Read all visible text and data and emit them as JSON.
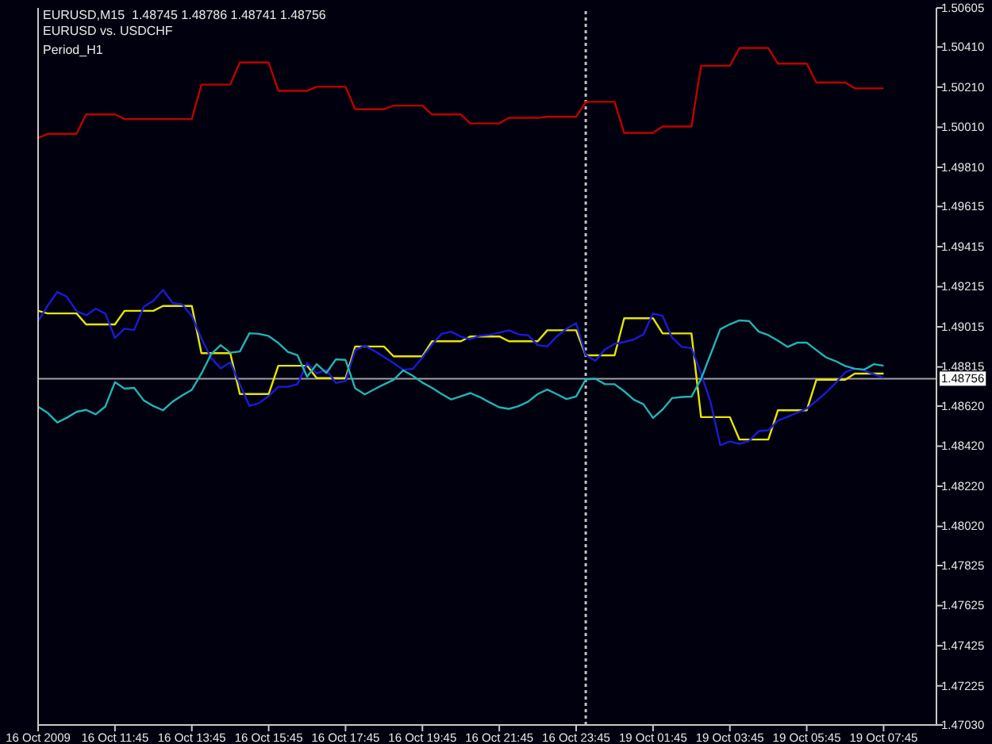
{
  "chart_data": {
    "type": "line",
    "title": "EURUSD,M15  1.48745 1.48786 1.48741 1.48756",
    "subtitle": "EURUSD vs. USDCHF",
    "annotations": [
      "Period_H1"
    ],
    "categories": [
      "16 Oct 2009",
      null,
      null,
      null,
      null,
      null,
      null,
      null,
      "16 Oct 11:45",
      null,
      null,
      null,
      null,
      null,
      null,
      null,
      "16 Oct 13:45",
      null,
      null,
      null,
      null,
      null,
      null,
      null,
      "16 Oct 15:45",
      null,
      null,
      null,
      null,
      null,
      null,
      null,
      "16 Oct 17:45",
      null,
      null,
      null,
      null,
      null,
      null,
      null,
      "16 Oct 19:45",
      null,
      null,
      null,
      null,
      null,
      null,
      null,
      "16 Oct 21:45",
      null,
      null,
      null,
      null,
      null,
      null,
      null,
      "16 Oct 23:45",
      null,
      null,
      null,
      null,
      null,
      null,
      null,
      "19 Oct 01:45",
      null,
      null,
      null,
      null,
      null,
      null,
      null,
      "19 Oct 03:45",
      null,
      null,
      null,
      null,
      null,
      null,
      null,
      "19 Oct 05:45",
      null,
      null,
      null,
      null,
      null,
      null,
      null,
      "19 Oct 07:45"
    ],
    "ylim": [
      1.4703,
      1.50605
    ],
    "yticks": [
      {
        "value": 1.50605,
        "label": "1.50605"
      },
      {
        "value": 1.5041,
        "label": "1.50410"
      },
      {
        "value": 1.5021,
        "label": "1.50210"
      },
      {
        "value": 1.5001,
        "label": "1.50010"
      },
      {
        "value": 1.4981,
        "label": "1.49810"
      },
      {
        "value": 1.49615,
        "label": "1.49615"
      },
      {
        "value": 1.49415,
        "label": "1.49415"
      },
      {
        "value": 1.49215,
        "label": "1.49215"
      },
      {
        "value": 1.49015,
        "label": "1.49015"
      },
      {
        "value": 1.48815,
        "label": "1.48815"
      },
      {
        "value": 1.4862,
        "label": "1.48620"
      },
      {
        "value": 1.4842,
        "label": "1.48420"
      },
      {
        "value": 1.4822,
        "label": "1.48220"
      },
      {
        "value": 1.4802,
        "label": "1.48020"
      },
      {
        "value": 1.47825,
        "label": "1.47825"
      },
      {
        "value": 1.47625,
        "label": "1.47625"
      },
      {
        "value": 1.47425,
        "label": "1.47425"
      },
      {
        "value": 1.47225,
        "label": "1.47225"
      },
      {
        "value": 1.4703,
        "label": "1.47030"
      }
    ],
    "ref_lines": [
      {
        "axis": "y",
        "value": 1.48756,
        "label": "1.48756",
        "color": "#a0a0a8",
        "line_style": "solid"
      }
    ],
    "series": [
      {
        "color": "#c00000",
        "values": [
          1.49957,
          1.49977,
          1.49977,
          1.49977,
          1.49977,
          1.50074,
          1.50074,
          1.50074,
          1.50074,
          1.50051,
          1.50051,
          1.50051,
          1.50051,
          1.50051,
          1.50051,
          1.50051,
          1.50051,
          1.50223,
          1.50223,
          1.50223,
          1.50223,
          1.50333,
          1.50333,
          1.50333,
          1.50333,
          1.50192,
          1.50192,
          1.50192,
          1.50192,
          1.50212,
          1.50212,
          1.50212,
          1.50212,
          1.501,
          1.501,
          1.501,
          1.501,
          1.50118,
          1.50118,
          1.50118,
          1.50118,
          1.50074,
          1.50074,
          1.50074,
          1.50074,
          1.50029,
          1.50029,
          1.50029,
          1.50029,
          1.50057,
          1.50057,
          1.50057,
          1.50057,
          1.50062,
          1.50062,
          1.50062,
          1.50062,
          1.50137,
          1.50137,
          1.50137,
          1.50137,
          1.49982,
          1.49982,
          1.49982,
          1.49982,
          1.50014,
          1.50014,
          1.50014,
          1.50014,
          1.50317,
          1.50317,
          1.50317,
          1.50317,
          1.50405,
          1.50405,
          1.50405,
          1.50405,
          1.50327,
          1.50327,
          1.50327,
          1.50327,
          1.50233,
          1.50233,
          1.50233,
          1.50233,
          1.50204,
          1.50204,
          1.50204,
          1.50204
        ]
      },
      {
        "color": "#e6e600",
        "values": [
          1.49095,
          1.49082,
          1.49082,
          1.49082,
          1.49082,
          1.49027,
          1.49027,
          1.49027,
          1.49027,
          1.49095,
          1.49095,
          1.49095,
          1.49095,
          1.49119,
          1.49119,
          1.49119,
          1.49119,
          1.48884,
          1.48884,
          1.48884,
          1.48884,
          1.4868,
          1.4868,
          1.4868,
          1.4868,
          1.48821,
          1.48821,
          1.48821,
          1.48821,
          1.48759,
          1.48759,
          1.48759,
          1.48759,
          1.48917,
          1.48917,
          1.48917,
          1.48917,
          1.48868,
          1.48868,
          1.48868,
          1.48868,
          1.48943,
          1.48943,
          1.48943,
          1.48943,
          1.48967,
          1.48967,
          1.48967,
          1.48967,
          1.48943,
          1.48943,
          1.48943,
          1.48943,
          1.48998,
          1.48998,
          1.48998,
          1.48998,
          1.48873,
          1.48873,
          1.48873,
          1.48873,
          1.49058,
          1.49058,
          1.49058,
          1.49058,
          1.48982,
          1.48982,
          1.48982,
          1.48982,
          1.48565,
          1.48565,
          1.48565,
          1.48565,
          1.48453,
          1.48453,
          1.48453,
          1.48453,
          1.48599,
          1.48599,
          1.48599,
          1.48599,
          1.48751,
          1.48751,
          1.48751,
          1.48751,
          1.48782,
          1.48782,
          1.48782,
          1.48782
        ]
      },
      {
        "color": "#1a1ad8",
        "values": [
          1.49043,
          1.49121,
          1.49189,
          1.49165,
          1.49093,
          1.49073,
          1.49105,
          1.49081,
          1.4896,
          1.49006,
          1.48999,
          1.49115,
          1.49145,
          1.49199,
          1.49134,
          1.49127,
          1.49069,
          1.48957,
          1.4886,
          1.48808,
          1.48838,
          1.48728,
          1.4862,
          1.48635,
          1.4867,
          1.48716,
          1.48716,
          1.48729,
          1.48834,
          1.48782,
          1.488,
          1.48735,
          1.48745,
          1.48898,
          1.48921,
          1.48895,
          1.48865,
          1.48834,
          1.48801,
          1.48805,
          1.48862,
          1.48926,
          1.4898,
          1.48991,
          1.48966,
          1.48953,
          1.48971,
          1.48975,
          1.48986,
          1.48998,
          1.48977,
          1.48973,
          1.48924,
          1.48917,
          1.48968,
          1.49005,
          1.49033,
          1.48875,
          1.48845,
          1.48902,
          1.4893,
          1.48939,
          1.48952,
          1.48977,
          1.49082,
          1.49069,
          1.4896,
          1.48915,
          1.48909,
          1.48782,
          1.48638,
          1.48425,
          1.48443,
          1.48432,
          1.48446,
          1.48495,
          1.48499,
          1.48547,
          1.48567,
          1.48587,
          1.48608,
          1.48645,
          1.48687,
          1.48735,
          1.48788,
          1.48807,
          1.48796,
          1.48778,
          1.48761
        ]
      },
      {
        "color": "#20b4b4",
        "values": [
          1.48617,
          1.48586,
          1.48538,
          1.48562,
          1.48591,
          1.48601,
          1.48579,
          1.48618,
          1.48739,
          1.48707,
          1.48711,
          1.48648,
          1.4862,
          1.48599,
          1.48642,
          1.48673,
          1.48701,
          1.48782,
          1.48878,
          1.48924,
          1.48886,
          1.48892,
          1.48983,
          1.4898,
          1.48969,
          1.48935,
          1.4889,
          1.48873,
          1.48766,
          1.48829,
          1.48785,
          1.48853,
          1.4885,
          1.48709,
          1.48678,
          1.48704,
          1.48728,
          1.48751,
          1.48798,
          1.48771,
          1.48737,
          1.48711,
          1.4868,
          1.48653,
          1.48669,
          1.48685,
          1.48664,
          1.48638,
          1.48614,
          1.48606,
          1.48619,
          1.48642,
          1.4868,
          1.48702,
          1.48679,
          1.48655,
          1.48668,
          1.48753,
          1.48756,
          1.48729,
          1.48729,
          1.48694,
          1.48652,
          1.48629,
          1.48561,
          1.48603,
          1.4866,
          1.48665,
          1.48667,
          1.48755,
          1.48879,
          1.49003,
          1.49028,
          1.49047,
          1.49044,
          1.48991,
          1.48974,
          1.48946,
          1.48915,
          1.48936,
          1.48936,
          1.48899,
          1.48863,
          1.48844,
          1.4882,
          1.48806,
          1.48802,
          1.48829,
          1.48821
        ]
      }
    ]
  }
}
